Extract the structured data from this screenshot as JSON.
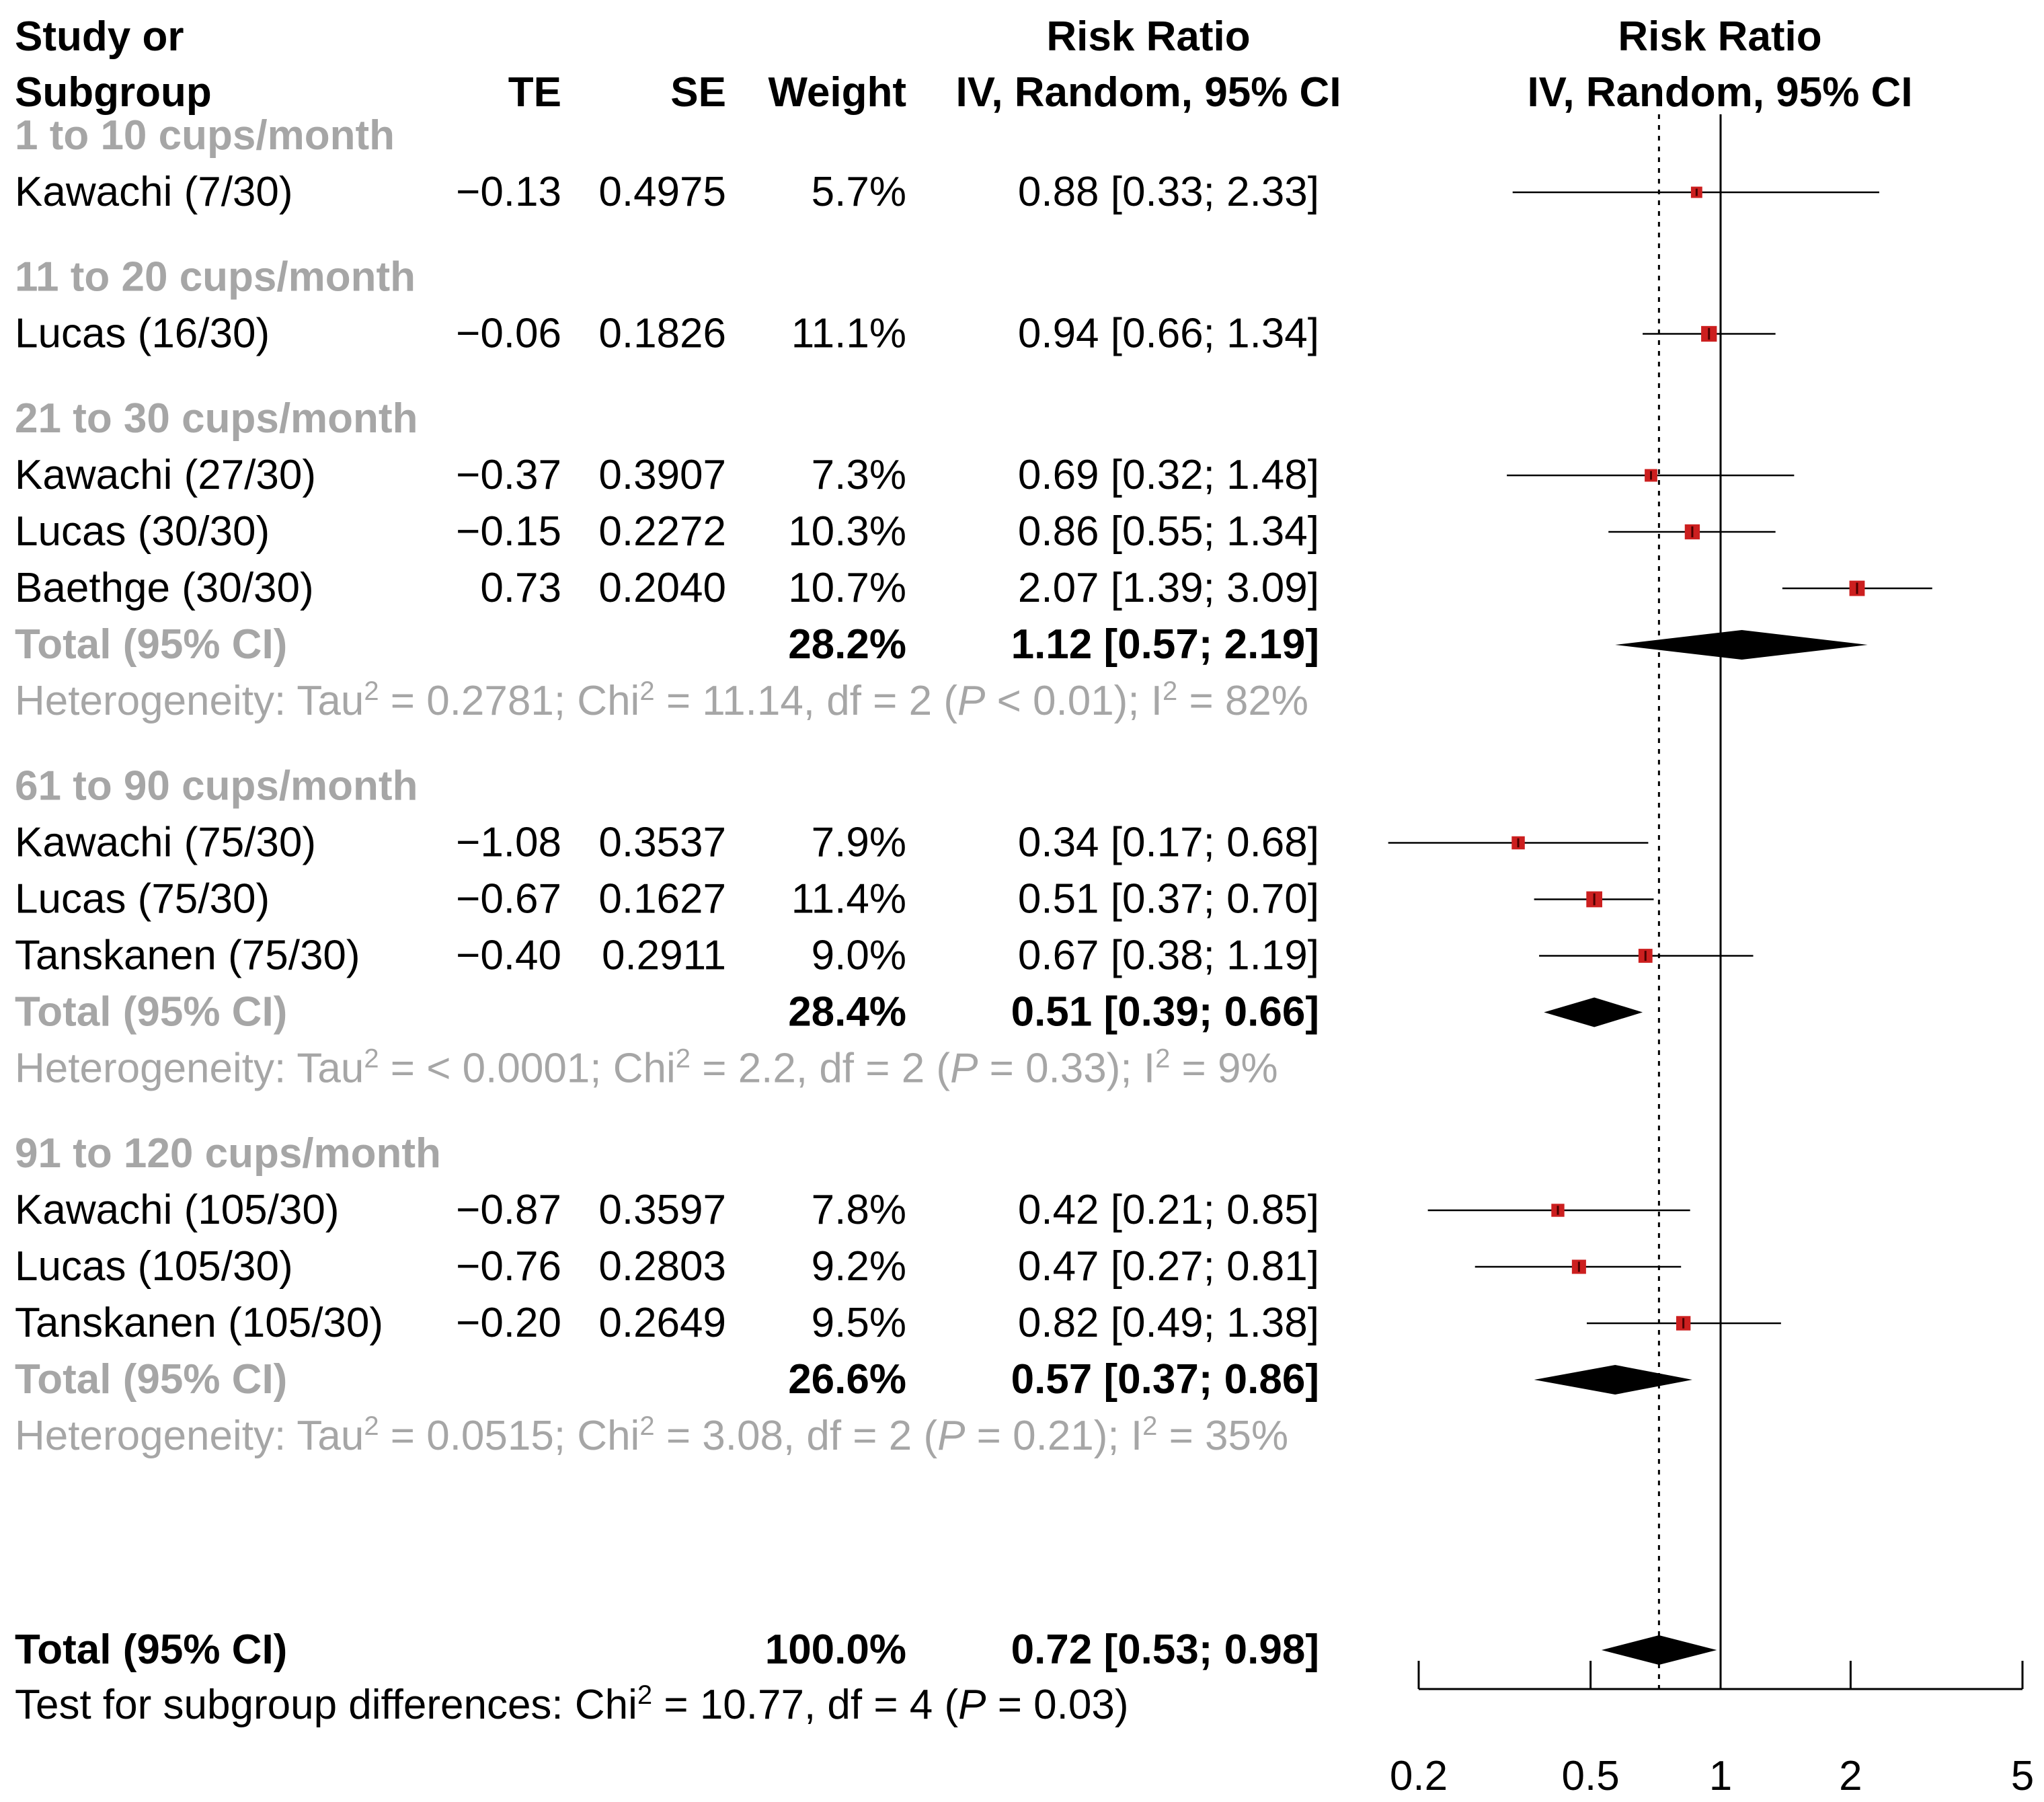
{
  "header": {
    "col_study": "Study or",
    "col_study_2": "Subgroup",
    "col_te": "TE",
    "col_se": "SE",
    "col_weight": "Weight",
    "col_rr": "Risk Ratio",
    "col_rr_2": "IV, Random, 95% CI",
    "plot_title": "Risk Ratio",
    "plot_title_2": "IV, Random, 95% CI"
  },
  "chart_data": {
    "type": "forest",
    "scale": "log",
    "xlim": [
      0.2,
      5
    ],
    "x_ticks": [
      0.2,
      0.5,
      1,
      2,
      5
    ],
    "x_tick_labels": [
      "0.2",
      "0.5",
      "1",
      "2",
      "5"
    ],
    "reference_line": 1,
    "overall_effect_line": 0.72,
    "marker_color": "#cc1f1f",
    "subgroups": [
      {
        "label": "1 to 10 cups/month",
        "studies": [
          {
            "study": "Kawachi (7/30)",
            "te": "−0.13",
            "se": "0.4975",
            "weight": "5.7%",
            "rr_text": "0.88 [0.33; 2.33]",
            "rr": 0.88,
            "lower": 0.33,
            "upper": 2.33
          }
        ]
      },
      {
        "label": "11 to 20 cups/month",
        "studies": [
          {
            "study": "Lucas (16/30)",
            "te": "−0.06",
            "se": "0.1826",
            "weight": "11.1%",
            "rr_text": "0.94 [0.66; 1.34]",
            "rr": 0.94,
            "lower": 0.66,
            "upper": 1.34
          }
        ]
      },
      {
        "label": "21 to 30 cups/month",
        "studies": [
          {
            "study": "Kawachi (27/30)",
            "te": "−0.37",
            "se": "0.3907",
            "weight": "7.3%",
            "rr_text": "0.69 [0.32; 1.48]",
            "rr": 0.69,
            "lower": 0.32,
            "upper": 1.48
          },
          {
            "study": "Lucas (30/30)",
            "te": "−0.15",
            "se": "0.2272",
            "weight": "10.3%",
            "rr_text": "0.86 [0.55; 1.34]",
            "rr": 0.86,
            "lower": 0.55,
            "upper": 1.34
          },
          {
            "study": "Baethge (30/30)",
            "te": "0.73",
            "se": "0.2040",
            "weight": "10.7%",
            "rr_text": "2.07 [1.39; 3.09]",
            "rr": 2.07,
            "lower": 1.39,
            "upper": 3.09
          }
        ],
        "total": {
          "label": "Total (95% CI)",
          "weight": "28.2%",
          "rr_text": "1.12 [0.57; 2.19]",
          "rr": 1.12,
          "lower": 0.57,
          "upper": 2.19
        },
        "heterogeneity": {
          "prefix": "Heterogeneity: Tau",
          "sup1": "2",
          "tau_value": " = 0.2781; Chi",
          "sup2": "2",
          "chi_text": " = 11.14, df = 2 (",
          "p_letter": "P",
          "p_text": " < 0.01); I",
          "sup3": "2",
          "i2_text": " = 82%"
        }
      },
      {
        "label": "61 to 90 cups/month",
        "studies": [
          {
            "study": "Kawachi (75/30)",
            "te": "−1.08",
            "se": "0.3537",
            "weight": "7.9%",
            "rr_text": "0.34 [0.17; 0.68]",
            "rr": 0.34,
            "lower": 0.17,
            "upper": 0.68
          },
          {
            "study": "Lucas (75/30)",
            "te": "−0.67",
            "se": "0.1627",
            "weight": "11.4%",
            "rr_text": "0.51 [0.37; 0.70]",
            "rr": 0.51,
            "lower": 0.37,
            "upper": 0.7
          },
          {
            "study": "Tanskanen (75/30)",
            "te": "−0.40",
            "se": "0.2911",
            "weight": "9.0%",
            "rr_text": "0.67 [0.38; 1.19]",
            "rr": 0.67,
            "lower": 0.38,
            "upper": 1.19
          }
        ],
        "total": {
          "label": "Total (95% CI)",
          "weight": "28.4%",
          "rr_text": "0.51 [0.39; 0.66]",
          "rr": 0.51,
          "lower": 0.39,
          "upper": 0.66
        },
        "heterogeneity": {
          "prefix": "Heterogeneity: Tau",
          "sup1": "2",
          "tau_value": " = < 0.0001; Chi",
          "sup2": "2",
          "chi_text": " = 2.2, df = 2 (",
          "p_letter": "P",
          "p_text": " = 0.33); I",
          "sup3": "2",
          "i2_text": " = 9%"
        }
      },
      {
        "label": "91 to 120 cups/month",
        "studies": [
          {
            "study": "Kawachi (105/30)",
            "te": "−0.87",
            "se": "0.3597",
            "weight": "7.8%",
            "rr_text": "0.42 [0.21; 0.85]",
            "rr": 0.42,
            "lower": 0.21,
            "upper": 0.85
          },
          {
            "study": "Lucas (105/30)",
            "te": "−0.76",
            "se": "0.2803",
            "weight": "9.2%",
            "rr_text": "0.47 [0.27; 0.81]",
            "rr": 0.47,
            "lower": 0.27,
            "upper": 0.81
          },
          {
            "study": "Tanskanen (105/30)",
            "te": "−0.20",
            "se": "0.2649",
            "weight": "9.5%",
            "rr_text": "0.82 [0.49; 1.38]",
            "rr": 0.82,
            "lower": 0.49,
            "upper": 1.38
          }
        ],
        "total": {
          "label": "Total (95% CI)",
          "weight": "26.6%",
          "rr_text": "0.57 [0.37; 0.86]",
          "rr": 0.57,
          "lower": 0.37,
          "upper": 0.86
        },
        "heterogeneity": {
          "prefix": "Heterogeneity: Tau",
          "sup1": "2",
          "tau_value": " = 0.0515; Chi",
          "sup2": "2",
          "chi_text": " = 3.08, df = 2 (",
          "p_letter": "P",
          "p_text": " = 0.21); I",
          "sup3": "2",
          "i2_text": " = 35%"
        }
      }
    ],
    "overall": {
      "label": "Total (95% CI)",
      "weight": "100.0%",
      "rr_text": "0.72 [0.53; 0.98]",
      "rr": 0.72,
      "lower": 0.53,
      "upper": 0.98
    },
    "subgroup_test": {
      "prefix": "Test for subgroup differences: Chi",
      "sup": "2",
      "chi_text": " = 10.77, df = 4 (",
      "p_letter": "P",
      "p_text": " = 0.03)"
    }
  }
}
